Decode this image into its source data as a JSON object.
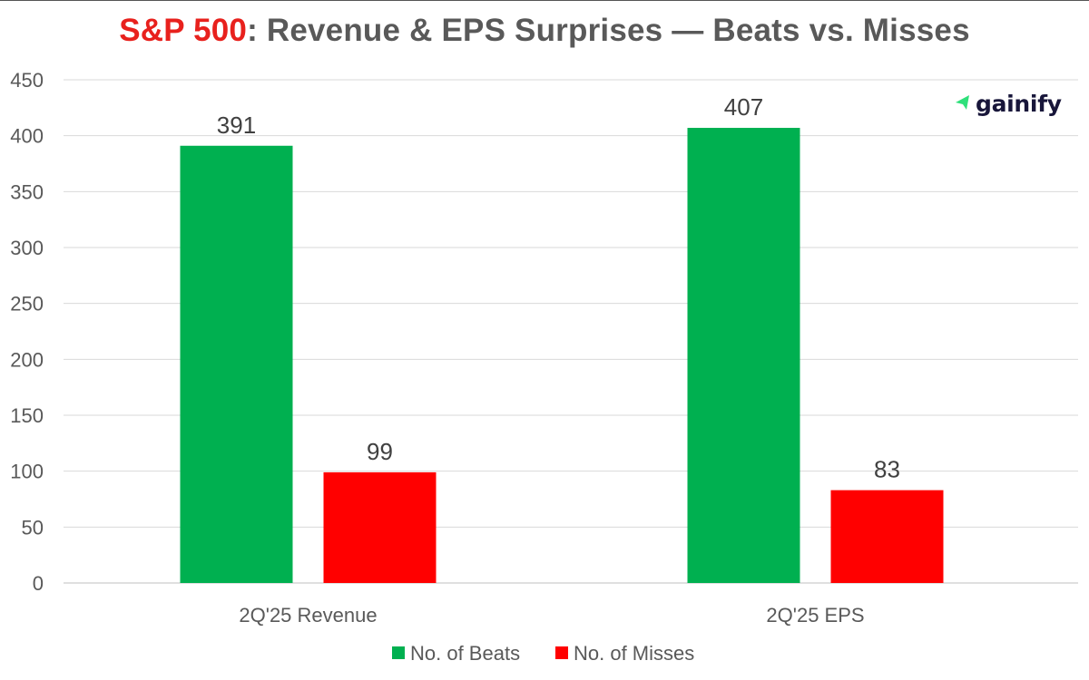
{
  "chart_data": {
    "type": "bar",
    "title_highlight": "S&P 500",
    "title_rest": ": Revenue & EPS Surprises — Beats vs. Misses",
    "categories": [
      "2Q'25 Revenue",
      "2Q'25 EPS"
    ],
    "series": [
      {
        "name": "No. of Beats",
        "color": "#00b050",
        "values": [
          391,
          407
        ]
      },
      {
        "name": "No. of Misses",
        "color": "#ff0000",
        "values": [
          99,
          83
        ]
      }
    ],
    "ylim": [
      0,
      450
    ],
    "yticks": [
      0,
      50,
      100,
      150,
      200,
      250,
      300,
      350,
      400,
      450
    ],
    "xlabel": "",
    "ylabel": "",
    "grid": true,
    "legend_position": "bottom-center"
  },
  "branding": {
    "logo_text": "gainify",
    "logo_icon": "arrow-icon",
    "logo_color": "#2ee07a"
  }
}
